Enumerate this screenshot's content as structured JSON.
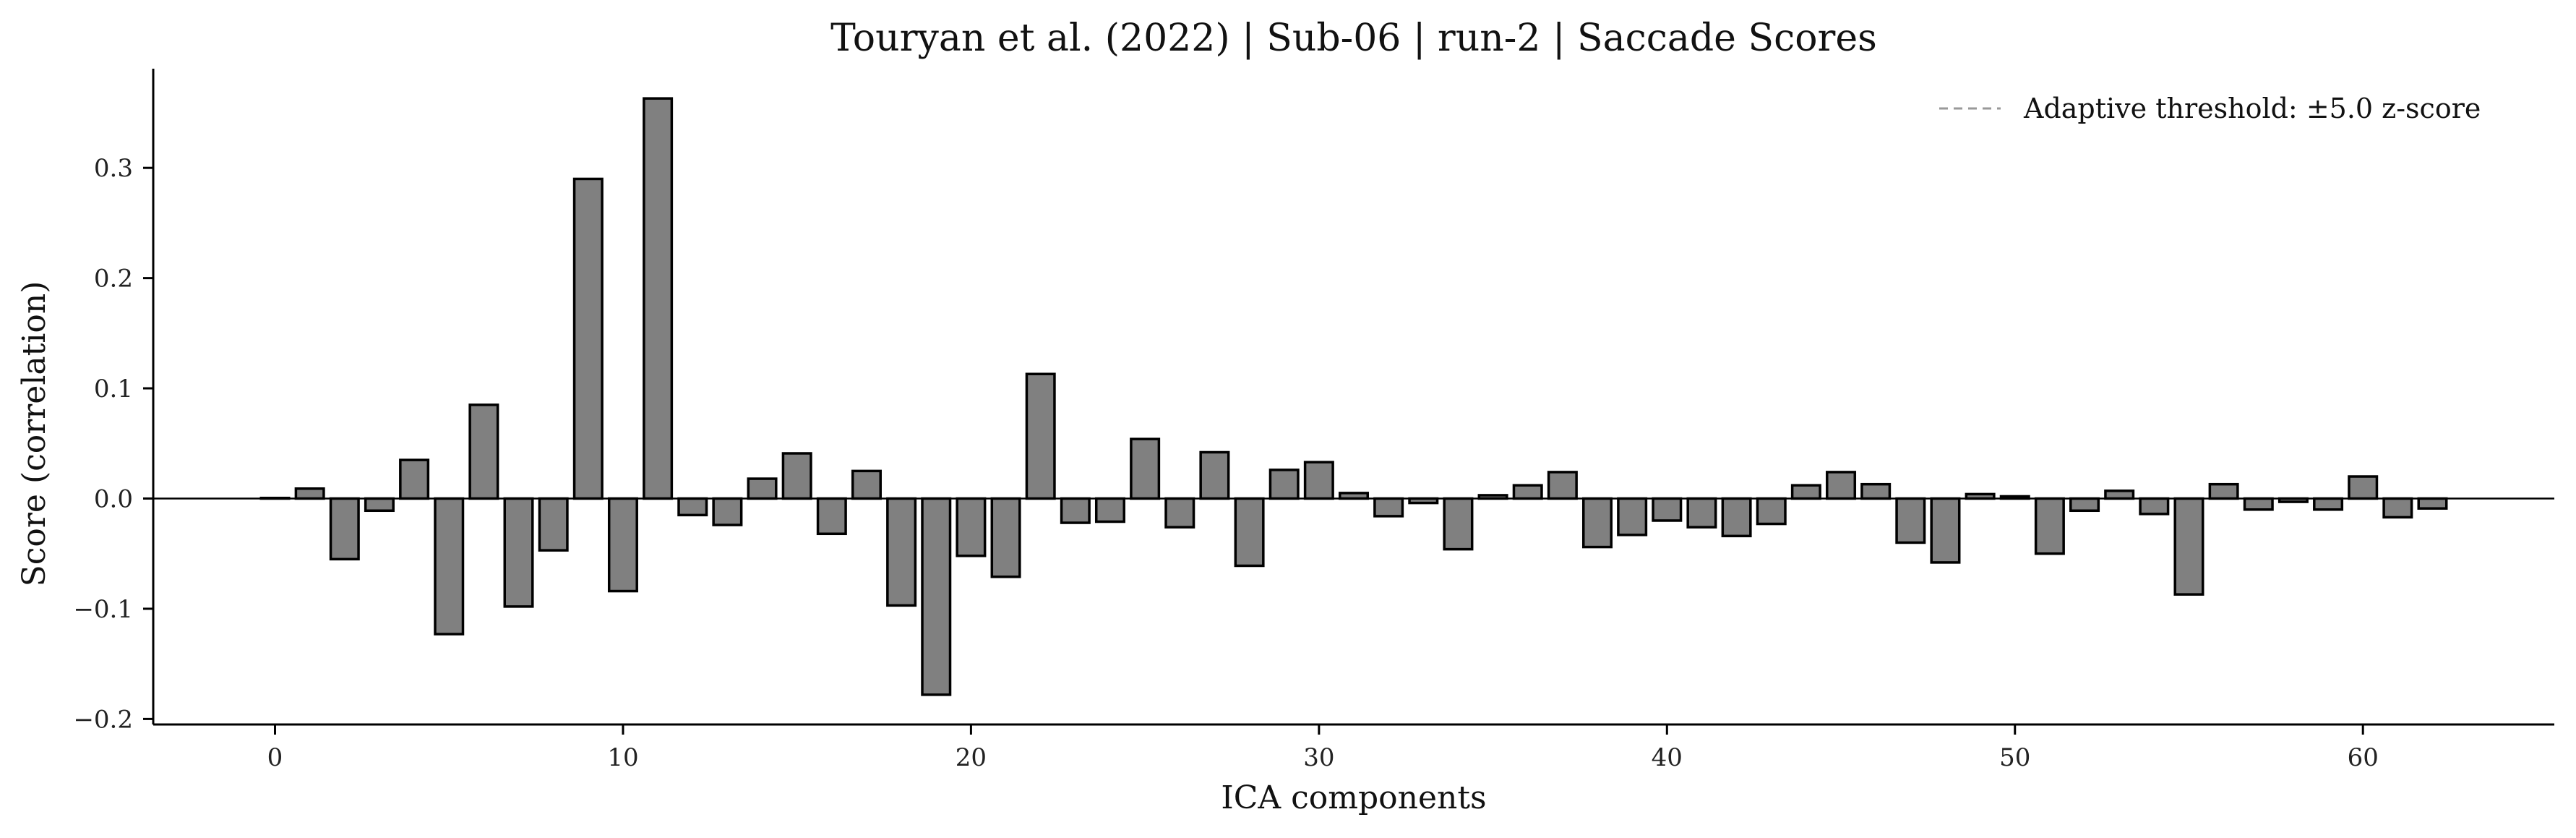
{
  "chart_data": {
    "type": "bar",
    "title": "Touryan et al. (2022) | Sub-06 | run-2 | Saccade Scores",
    "xlabel": "ICA components",
    "ylabel": "Score (correlation)",
    "xlim": [
      -3.5,
      65.5
    ],
    "ylim": [
      -0.205,
      0.39
    ],
    "xticks": [
      0,
      10,
      20,
      30,
      40,
      50,
      60
    ],
    "yticks": [
      -0.2,
      -0.1,
      0.0,
      0.1,
      0.2,
      0.3
    ],
    "ytick_labels": [
      "−0.2",
      "−0.1",
      "0.0",
      "0.1",
      "0.2",
      "0.3"
    ],
    "x": [
      0,
      1,
      2,
      3,
      4,
      5,
      6,
      7,
      8,
      9,
      10,
      11,
      12,
      13,
      14,
      15,
      16,
      17,
      18,
      19,
      20,
      21,
      22,
      23,
      24,
      25,
      26,
      27,
      28,
      29,
      30,
      31,
      32,
      33,
      34,
      35,
      36,
      37,
      38,
      39,
      40,
      41,
      42,
      43,
      44,
      45,
      46,
      47,
      48,
      49,
      50,
      51,
      52,
      53,
      54,
      55,
      56,
      57,
      58,
      59,
      60,
      61,
      62
    ],
    "values": [
      0.0005,
      0.009,
      -0.055,
      -0.011,
      0.035,
      -0.123,
      0.085,
      -0.098,
      -0.047,
      0.29,
      -0.084,
      0.363,
      -0.015,
      -0.024,
      0.018,
      0.041,
      -0.032,
      0.025,
      -0.097,
      -0.178,
      -0.052,
      -0.071,
      0.113,
      -0.022,
      -0.021,
      0.054,
      -0.026,
      0.042,
      -0.061,
      0.026,
      0.033,
      0.005,
      -0.016,
      -0.004,
      -0.046,
      0.003,
      0.012,
      0.024,
      -0.044,
      -0.033,
      -0.02,
      -0.026,
      -0.034,
      -0.023,
      0.012,
      0.024,
      0.013,
      -0.04,
      -0.058,
      0.004,
      0.002,
      -0.05,
      -0.011,
      0.007,
      -0.014,
      -0.087,
      0.013,
      -0.01,
      -0.003,
      -0.01,
      0.02,
      -0.017,
      -0.009
    ],
    "bar_color": "#808080",
    "edge_color": "#000000",
    "legend": {
      "placement": "top-right",
      "entries": [
        {
          "label": "Adaptive threshold: ±5.0 z-score",
          "style": "dashed",
          "color": "#999999"
        }
      ]
    },
    "zero_line": true,
    "grid": false
  }
}
